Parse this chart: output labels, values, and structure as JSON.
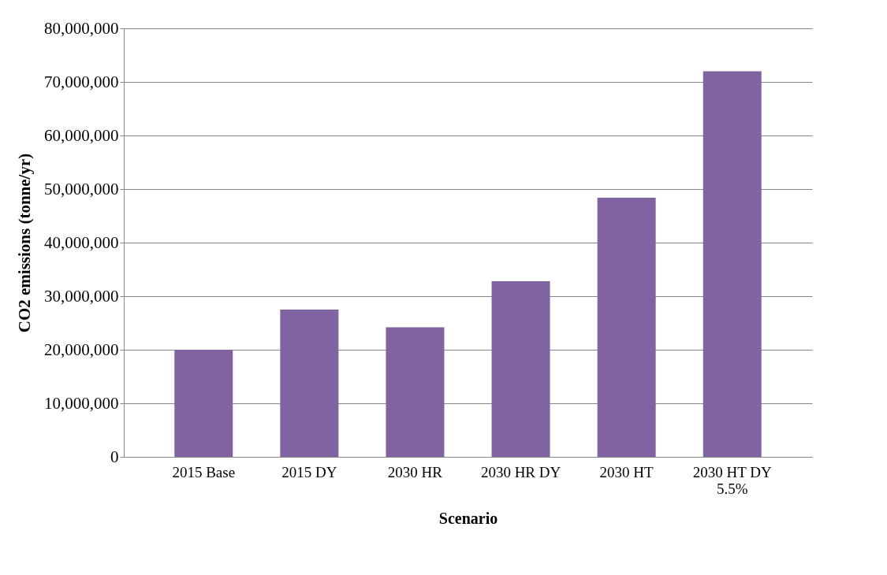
{
  "chart_data": {
    "type": "bar",
    "xlabel": "Scenario",
    "ylabel": "CO2 emissions (tonne/yr)",
    "categories": [
      "2015 Base",
      "2015 DY",
      "2030 HR",
      "2030 HR DY",
      "2030 HT",
      "2030 HT DY\n5.5%"
    ],
    "values": [
      20000000,
      27500000,
      24200000,
      32800000,
      48400000,
      72000000
    ],
    "color": "#8064a2",
    "ylim": [
      0,
      80000000
    ],
    "yticks": [
      0,
      {
        "value": 10000000,
        "label": "10,000,000"
      },
      {
        "value": 20000000,
        "label": "20,000,000"
      },
      {
        "value": 30000000,
        "label": "30,000,000"
      },
      {
        "value": 40000000,
        "label": "40,000,000"
      },
      {
        "value": 50000000,
        "label": "50,000,000"
      },
      {
        "value": 60000000,
        "label": "60,000,000"
      },
      {
        "value": 70000000,
        "label": "70,000,000"
      },
      {
        "value": 80000000,
        "label": "80,000,000"
      }
    ],
    "grid": "y"
  }
}
